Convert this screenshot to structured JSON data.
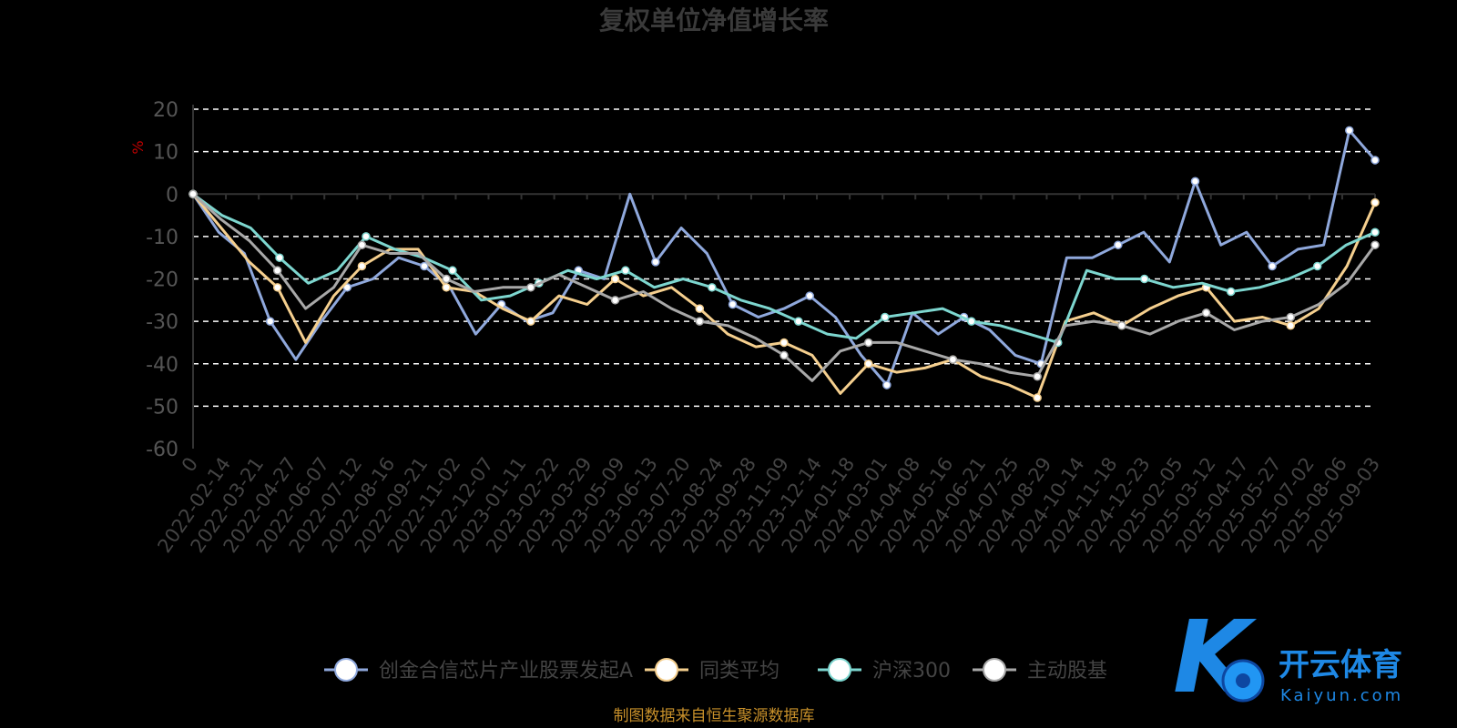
{
  "chart_data": {
    "type": "line",
    "title": "复权单位净值增长率",
    "ylabel": "%",
    "ylim": [
      -60,
      20
    ],
    "yticks": [
      20,
      10,
      0,
      -10,
      -20,
      -30,
      -40,
      -50,
      -60
    ],
    "grid": true,
    "legend_position": "bottom",
    "x_tick_labels": [
      "0",
      "2022-02-14",
      "2022-03-21",
      "2022-04-27",
      "2022-06-07",
      "2022-07-12",
      "2022-08-16",
      "2022-09-21",
      "2022-11-02",
      "2022-12-07",
      "2023-01-11",
      "2023-02-22",
      "2023-03-29",
      "2023-05-09",
      "2023-06-13",
      "2023-07-20",
      "2023-08-24",
      "2023-09-28",
      "2023-11-09",
      "2023-12-14",
      "2024-01-18",
      "2024-03-01",
      "2024-04-08",
      "2024-05-16",
      "2024-06-21",
      "2024-07-25",
      "2024-08-29",
      "2024-10-14",
      "2024-11-18",
      "2024-12-23",
      "2025-02-05",
      "2025-03-12",
      "2025-04-17",
      "2025-05-27",
      "2025-07-02",
      "2025-08-06",
      "2025-09-03"
    ],
    "series": [
      {
        "name": "创金合信芯片产业股票发起A",
        "color": "#8fa8dc",
        "values": [
          0,
          -9,
          -14,
          -30,
          -39,
          -30,
          -22,
          -20,
          -15,
          -17,
          -22,
          -33,
          -26,
          -30,
          -28,
          -18,
          -20,
          0,
          -16,
          -8,
          -14,
          -26,
          -29,
          -27,
          -24,
          -29,
          -38,
          -45,
          -28,
          -33,
          -29,
          -32,
          -38,
          -40,
          -15,
          -15,
          -12,
          -9,
          -16,
          3,
          -12,
          -9,
          -17,
          -13,
          -12,
          15,
          8
        ]
      },
      {
        "name": "同类平均",
        "color": "#f5cf8e",
        "values": [
          0,
          -8,
          -16,
          -22,
          -35,
          -24,
          -17,
          -13,
          -13,
          -22,
          -23,
          -27,
          -30,
          -24,
          -26,
          -20,
          -24,
          -22,
          -27,
          -33,
          -36,
          -35,
          -38,
          -47,
          -40,
          -42,
          -41,
          -39,
          -43,
          -45,
          -48,
          -30,
          -28,
          -31,
          -27,
          -24,
          -22,
          -30,
          -29,
          -31,
          -27,
          -17,
          -2
        ]
      },
      {
        "name": "沪深300",
        "color": "#7dd6cf",
        "values": [
          0,
          -5,
          -8,
          -15,
          -21,
          -18,
          -10,
          -13,
          -15,
          -18,
          -25,
          -24,
          -21,
          -18,
          -20,
          -18,
          -22,
          -20,
          -22,
          -25,
          -27,
          -30,
          -33,
          -34,
          -29,
          -28,
          -27,
          -30,
          -31,
          -33,
          -35,
          -18,
          -20,
          -20,
          -22,
          -21,
          -23,
          -22,
          -20,
          -17,
          -12,
          -9
        ]
      },
      {
        "name": "主动股基",
        "color": "#a8a8a8",
        "values": [
          0,
          -6,
          -11,
          -18,
          -27,
          -22,
          -12,
          -14,
          -14,
          -20,
          -23,
          -22,
          -22,
          -19,
          -22,
          -25,
          -23,
          -27,
          -30,
          -31,
          -34,
          -38,
          -44,
          -37,
          -35,
          -35,
          -37,
          -39,
          -40,
          -42,
          -43,
          -31,
          -30,
          -31,
          -33,
          -30,
          -28,
          -32,
          -30,
          -29,
          -26,
          -21,
          -12
        ]
      }
    ]
  },
  "source_note": "制图数据来自恒生聚源数据库",
  "logo": {
    "name": "开云体育",
    "domain": "Kaiyun.com",
    "mark": "K"
  }
}
